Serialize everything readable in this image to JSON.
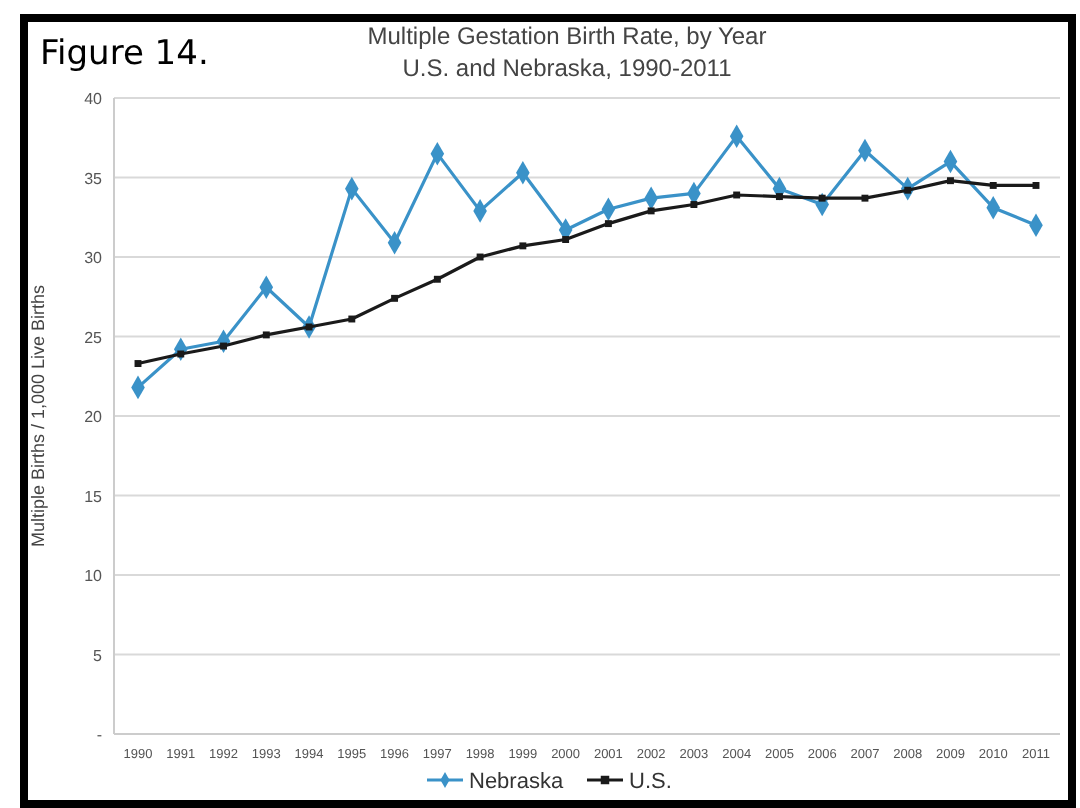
{
  "chart_data": {
    "type": "line",
    "title": "Multiple Gestation Birth Rate, by Year",
    "subtitle": "U.S. and Nebraska, 1990-2011",
    "ylabel": "Multiple Births / 1,000 Live Births",
    "annotations": [
      "Figure 14."
    ],
    "categories": [
      "1990",
      "1991",
      "1992",
      "1993",
      "1994",
      "1995",
      "1996",
      "1997",
      "1998",
      "1999",
      "2000",
      "2001",
      "2002",
      "2003",
      "2004",
      "2005",
      "2006",
      "2007",
      "2008",
      "2009",
      "2010",
      "2011"
    ],
    "series": [
      {
        "name": "Nebraska",
        "color": "#3a92c8",
        "marker": "diamond",
        "values": [
          21.8,
          24.2,
          24.7,
          28.1,
          25.6,
          34.3,
          30.9,
          36.5,
          32.9,
          35.3,
          31.7,
          33.0,
          33.7,
          34.0,
          37.6,
          34.3,
          33.3,
          36.7,
          34.3,
          36.0,
          33.1,
          32.0
        ]
      },
      {
        "name": "U.S.",
        "color": "#1a1a1a",
        "marker": "square",
        "values": [
          23.3,
          23.9,
          24.4,
          25.1,
          25.6,
          26.1,
          27.4,
          28.6,
          30.0,
          30.7,
          31.1,
          32.1,
          32.9,
          33.3,
          33.9,
          33.8,
          33.7,
          33.7,
          34.2,
          34.8,
          34.5,
          34.5
        ]
      }
    ],
    "ylim": [
      0,
      40
    ],
    "yticks": [
      {
        "value": 0,
        "label": "-"
      },
      5,
      10,
      15,
      20,
      25,
      30,
      35,
      40
    ],
    "grid": "y",
    "legend": "bottom",
    "line_style": "solid"
  }
}
